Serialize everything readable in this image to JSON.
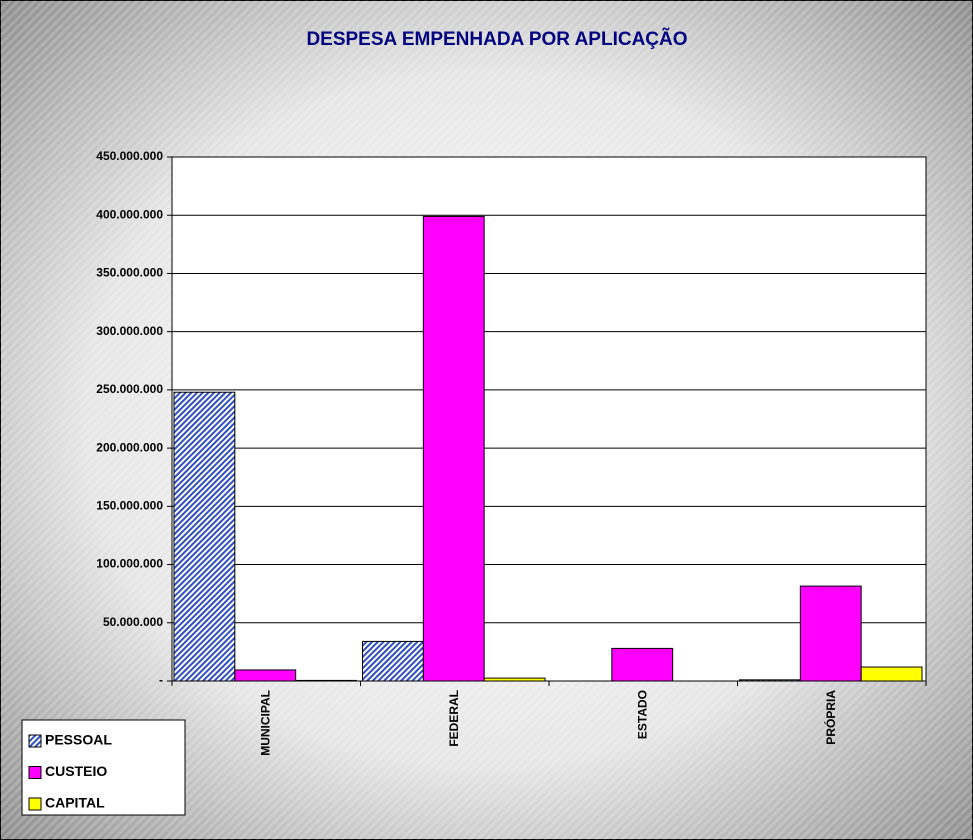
{
  "chart_data": {
    "type": "bar",
    "title": "DESPESA EMPENHADA POR APLICAÇÃO",
    "categories": [
      "MUNICIPAL",
      "FEDERAL",
      "ESTADO",
      "PRÓPRIA"
    ],
    "series": [
      {
        "name": "PESSOAL",
        "color": "#2f4fc0",
        "hatch": true,
        "values": [
          248000000,
          34000000,
          0,
          1000000
        ]
      },
      {
        "name": "CUSTEIO",
        "color": "#ff00ff",
        "values": [
          9500000,
          399000000,
          28000000,
          81500000
        ]
      },
      {
        "name": "CAPITAL",
        "color": "#ffff00",
        "values": [
          500000,
          2500000,
          0,
          12000000
        ]
      }
    ],
    "ylim": [
      0,
      450000000
    ],
    "yticks": [
      {
        "value": 0,
        "label": "-"
      },
      {
        "value": 50000000,
        "label": "50.000.000"
      },
      {
        "value": 100000000,
        "label": "100.000.000"
      },
      {
        "value": 150000000,
        "label": "150.000.000"
      },
      {
        "value": 200000000,
        "label": "200.000.000"
      },
      {
        "value": 250000000,
        "label": "250.000.000"
      },
      {
        "value": 300000000,
        "label": "300.000.000"
      },
      {
        "value": 350000000,
        "label": "350.000.000"
      },
      {
        "value": 400000000,
        "label": "400.000.000"
      },
      {
        "value": 450000000,
        "label": "450.000.000"
      }
    ],
    "grid": true,
    "legend": "bottom-left"
  }
}
